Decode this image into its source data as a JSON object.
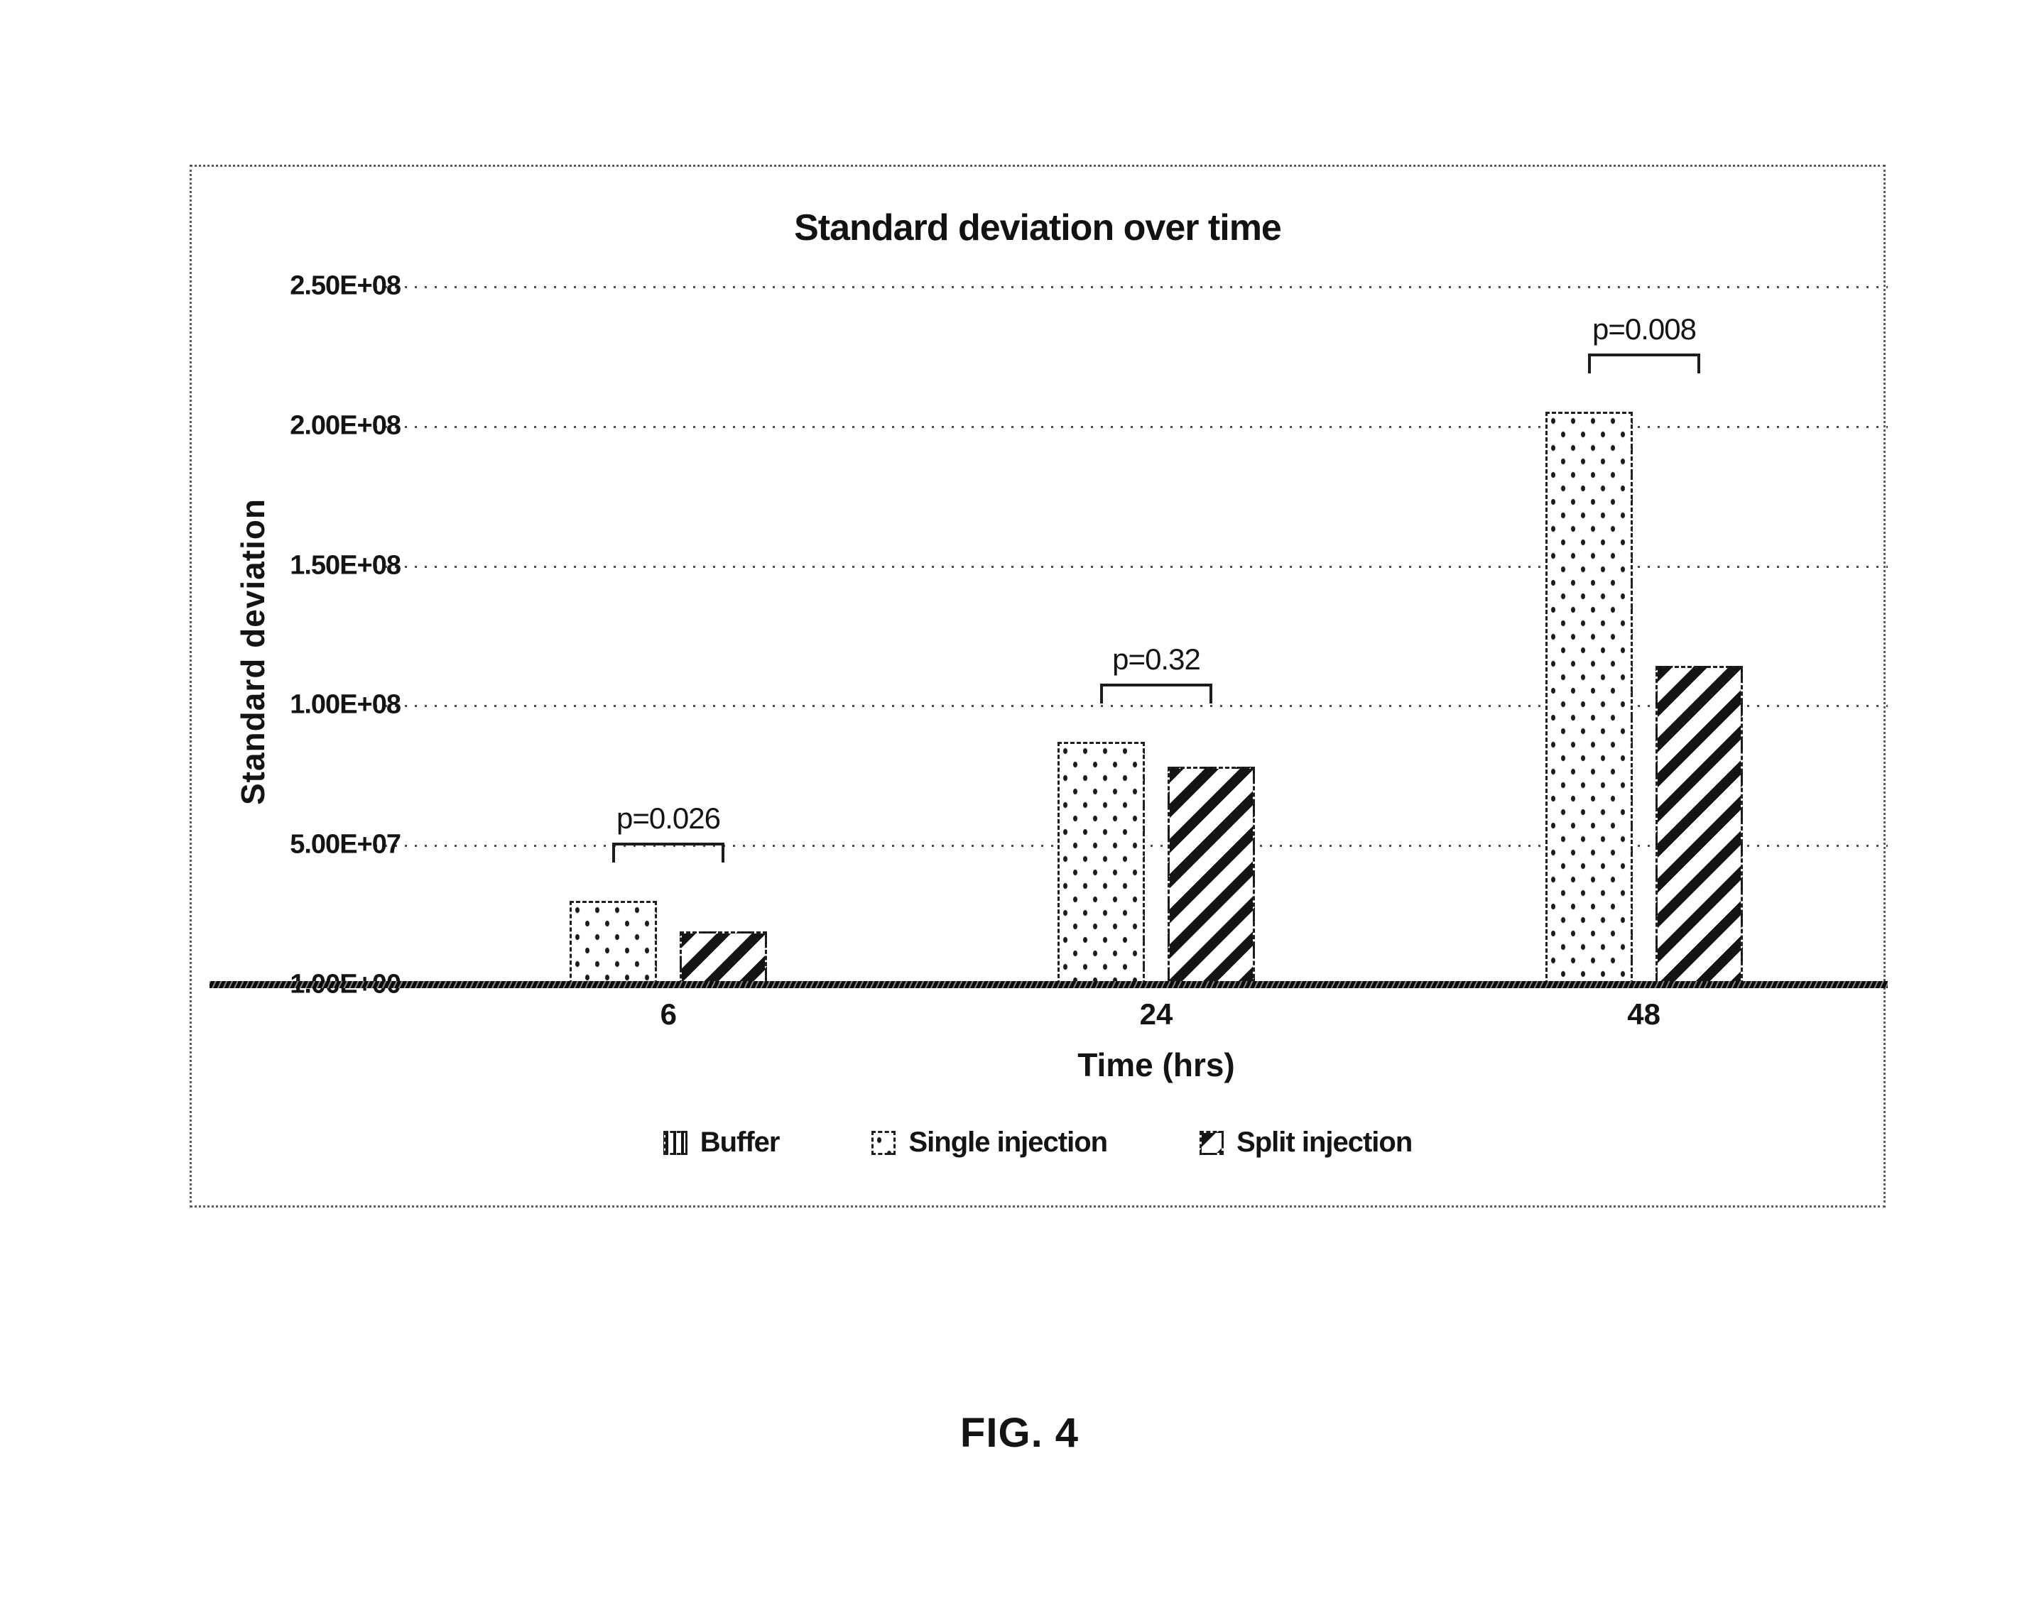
{
  "page": {
    "background": "#ffffff",
    "ink": "#141414"
  },
  "figure": {
    "caption": "FIG. 4"
  },
  "chart_data": {
    "type": "bar",
    "title": "Standard deviation over time",
    "xlabel": "Time (hrs)",
    "ylabel": "Standard deviation",
    "categories": [
      "6",
      "24",
      "48"
    ],
    "series": [
      {
        "name": "Buffer",
        "pattern": "vertical-lines",
        "values": [
          0,
          0,
          0
        ]
      },
      {
        "name": "Single injection",
        "pattern": "dots",
        "values": [
          30000000,
          87000000,
          205000000
        ]
      },
      {
        "name": "Split injection",
        "pattern": "diagonal-stripes",
        "values": [
          19000000,
          78000000,
          114000000
        ]
      }
    ],
    "y_ticks": [
      "2.50E+08",
      "2.00E+08",
      "1.50E+08",
      "1.00E+08",
      "5.00E+07",
      "1.00E+00"
    ],
    "ylim": [
      0,
      250000000
    ],
    "grid": "horizontal-dotted",
    "legend_position": "bottom",
    "annotations": [
      {
        "category": "6",
        "label": "p=0.026"
      },
      {
        "category": "24",
        "label": "p=0.32"
      },
      {
        "category": "48",
        "label": "p=0.008"
      }
    ]
  }
}
